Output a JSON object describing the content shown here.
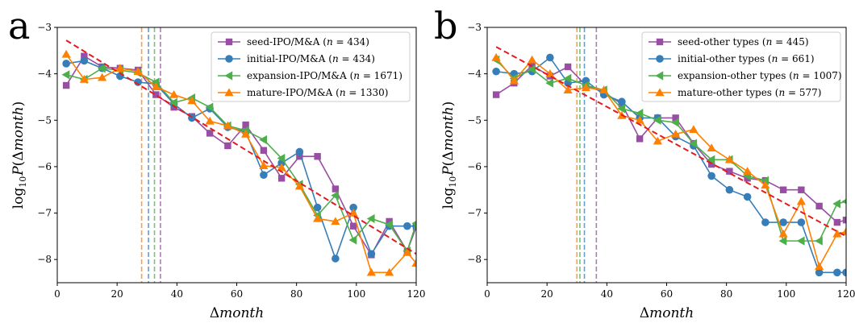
{
  "chart_data": [
    {
      "type": "line",
      "panel_label": "a",
      "xlabel": "Δmonth",
      "ylabel": "log10 P(Δmonth)",
      "xlim": [
        0,
        120
      ],
      "ylim": [
        -8.5,
        -3
      ],
      "xticks": [
        0,
        20,
        40,
        60,
        80,
        100,
        120
      ],
      "yticks": [
        -8,
        -7,
        -6,
        -5,
        -4,
        -3
      ],
      "legend_position": "upper-right",
      "series": [
        {
          "name": "seed-IPO/M&A",
          "n": "434",
          "marker": "square",
          "color": "#984ea3",
          "x": [
            3,
            9,
            15,
            21,
            27,
            33,
            39,
            45,
            51,
            57,
            63,
            69,
            75,
            81,
            87,
            93,
            99,
            105,
            111,
            117,
            120
          ],
          "y": [
            -4.25,
            -3.62,
            -3.85,
            -3.88,
            -3.92,
            -4.45,
            -4.72,
            -4.92,
            -5.28,
            -5.55,
            -5.1,
            -5.65,
            -6.25,
            -5.78,
            -5.78,
            -6.48,
            -7.28,
            -7.9,
            -7.18,
            -7.82,
            -7.3
          ]
        },
        {
          "name": "initial-IPO/M&A",
          "n": "434",
          "marker": "circle",
          "color": "#377eb8",
          "x": [
            3,
            9,
            15,
            21,
            27,
            33,
            39,
            45,
            51,
            57,
            63,
            69,
            75,
            81,
            87,
            93,
            99,
            105,
            111,
            117,
            120
          ],
          "y": [
            -3.78,
            -3.72,
            -3.88,
            -4.05,
            -4.18,
            -4.22,
            -4.65,
            -4.95,
            -4.75,
            -5.15,
            -5.25,
            -6.18,
            -5.92,
            -5.68,
            -6.88,
            -7.98,
            -6.88,
            -7.88,
            -7.28,
            -7.28,
            -7.28
          ]
        },
        {
          "name": "expansion-IPO/M&A",
          "n": "1671",
          "marker": "triangle-left",
          "color": "#4daf4a",
          "x": [
            3,
            9,
            15,
            21,
            27,
            33,
            39,
            45,
            51,
            57,
            63,
            69,
            75,
            81,
            87,
            93,
            99,
            105,
            111,
            117,
            120
          ],
          "y": [
            -4.02,
            -4.12,
            -3.88,
            -3.92,
            -3.98,
            -4.18,
            -4.62,
            -4.52,
            -4.72,
            -5.12,
            -5.22,
            -5.42,
            -5.82,
            -6.38,
            -7.05,
            -6.62,
            -7.58,
            -7.12,
            -7.25,
            -7.82,
            -7.22
          ]
        },
        {
          "name": "mature-IPO/M&A",
          "n": "1330",
          "marker": "triangle-up",
          "color": "#ff7f00",
          "x": [
            3,
            9,
            15,
            21,
            27,
            33,
            39,
            45,
            51,
            57,
            63,
            69,
            75,
            81,
            87,
            93,
            99,
            105,
            111,
            117,
            120
          ],
          "y": [
            -3.58,
            -4.12,
            -4.08,
            -3.88,
            -3.95,
            -4.28,
            -4.45,
            -4.58,
            -5.02,
            -5.12,
            -5.3,
            -5.98,
            -6.02,
            -6.42,
            -7.12,
            -7.18,
            -7.0,
            -8.28,
            -8.28,
            -7.85,
            -8.08
          ]
        }
      ],
      "fit_line": {
        "color": "#e41a1c",
        "style": "dashed",
        "x": [
          3,
          120
        ],
        "y": [
          -3.28,
          -7.88
        ]
      },
      "vlines": [
        {
          "x": 28.2,
          "color": "#ff7f00"
        },
        {
          "x": 30.5,
          "color": "#377eb8"
        },
        {
          "x": 32.5,
          "color": "#4daf4a"
        },
        {
          "x": 34.5,
          "color": "#984ea3"
        }
      ]
    },
    {
      "type": "line",
      "panel_label": "b",
      "xlabel": "Δmonth",
      "ylabel": "log10 P(Δmonth)",
      "xlim": [
        0,
        120
      ],
      "ylim": [
        -8.5,
        -3
      ],
      "xticks": [
        0,
        20,
        40,
        60,
        80,
        100,
        120
      ],
      "yticks": [
        -8,
        -7,
        -6,
        -5,
        -4,
        -3
      ],
      "legend_position": "upper-right",
      "series": [
        {
          "name": "seed-other types",
          "n": "445",
          "marker": "square",
          "color": "#984ea3",
          "x": [
            3,
            9,
            15,
            21,
            27,
            33,
            39,
            45,
            51,
            57,
            63,
            69,
            75,
            81,
            87,
            93,
            99,
            105,
            111,
            117,
            120
          ],
          "y": [
            -4.45,
            -4.2,
            -3.82,
            -4.05,
            -3.85,
            -4.25,
            -4.4,
            -4.65,
            -5.4,
            -4.95,
            -4.95,
            -5.5,
            -5.95,
            -6.1,
            -6.25,
            -6.3,
            -6.5,
            -6.5,
            -6.85,
            -7.2,
            -7.15
          ]
        },
        {
          "name": "initial-other types",
          "n": "661",
          "marker": "circle",
          "color": "#377eb8",
          "x": [
            3,
            9,
            15,
            21,
            27,
            33,
            39,
            45,
            51,
            57,
            63,
            69,
            75,
            81,
            87,
            93,
            99,
            105,
            111,
            117,
            120
          ],
          "y": [
            -3.95,
            -4.0,
            -3.95,
            -3.65,
            -4.2,
            -4.15,
            -4.45,
            -4.6,
            -4.95,
            -4.95,
            -5.35,
            -5.55,
            -6.2,
            -6.5,
            -6.65,
            -7.2,
            -7.2,
            -7.2,
            -8.28,
            -8.28,
            -8.28
          ]
        },
        {
          "name": "expansion-other types",
          "n": "1007",
          "marker": "triangle-left",
          "color": "#4daf4a",
          "x": [
            3,
            9,
            15,
            21,
            27,
            33,
            39,
            45,
            51,
            57,
            63,
            69,
            75,
            81,
            87,
            93,
            99,
            105,
            111,
            117,
            120
          ],
          "y": [
            -3.7,
            -4.1,
            -3.9,
            -4.2,
            -4.1,
            -4.25,
            -4.35,
            -4.75,
            -4.85,
            -5.0,
            -5.05,
            -5.5,
            -5.85,
            -5.85,
            -6.2,
            -6.3,
            -7.6,
            -7.6,
            -7.6,
            -6.8,
            -6.75
          ]
        },
        {
          "name": "mature-other types",
          "n": "577",
          "marker": "triangle-up",
          "color": "#ff7f00",
          "x": [
            3,
            9,
            15,
            21,
            27,
            33,
            39,
            45,
            51,
            57,
            63,
            69,
            75,
            81,
            87,
            93,
            99,
            105,
            111,
            117,
            120
          ],
          "y": [
            -3.65,
            -4.15,
            -3.7,
            -4.0,
            -4.35,
            -4.3,
            -4.35,
            -4.9,
            -5.0,
            -5.45,
            -5.3,
            -5.2,
            -5.6,
            -5.85,
            -6.1,
            -6.4,
            -7.45,
            -6.75,
            -8.15,
            -7.45,
            -7.4
          ]
        }
      ],
      "fit_line": {
        "color": "#e41a1c",
        "style": "dashed",
        "x": [
          3,
          120
        ],
        "y": [
          -3.42,
          -7.5
        ]
      },
      "vlines": [
        {
          "x": 30.0,
          "color": "#ff7f00"
        },
        {
          "x": 31.0,
          "color": "#4daf4a"
        },
        {
          "x": 32.5,
          "color": "#377eb8"
        },
        {
          "x": 36.5,
          "color": "#984ea3"
        }
      ]
    }
  ]
}
